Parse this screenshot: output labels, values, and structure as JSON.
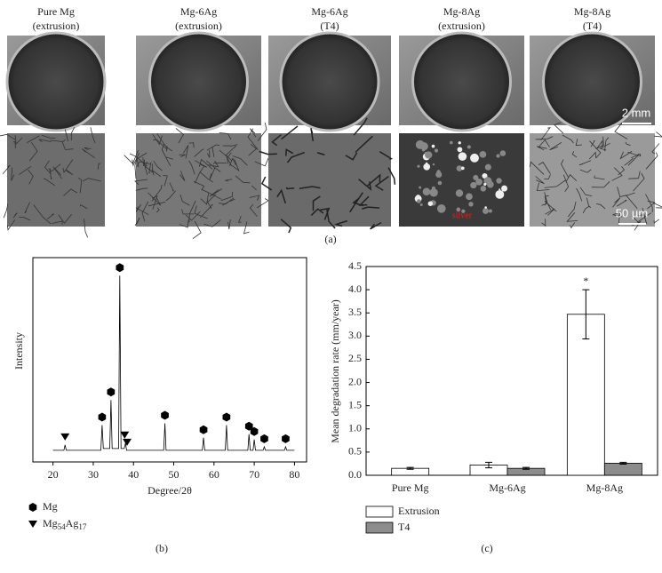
{
  "panel_a": {
    "columns": [
      {
        "line1": "Pure Mg",
        "line2": "(extrusion)"
      },
      {
        "line1": "Mg-6Ag",
        "line2": "(extrusion)"
      },
      {
        "line1": "Mg-6Ag",
        "line2": "(T4)"
      },
      {
        "line1": "Mg-8Ag",
        "line2": "(extrusion)"
      },
      {
        "line1": "Mg-8Ag",
        "line2": "(T4)"
      }
    ],
    "scale_bar_top": "2 mm",
    "scale_bar_bottom": "50 µm",
    "annotation": "silver",
    "label": "(a)"
  },
  "chart_data": [
    {
      "type": "line",
      "xlabel": "Degree/2θ",
      "ylabel": "Intensity",
      "x": [
        20,
        22.7,
        23,
        23.3,
        31.9,
        32.2,
        32.5,
        34.1,
        34.4,
        34.7,
        36.3,
        36.6,
        36.9,
        37.7,
        38.0,
        38.3,
        47.5,
        47.8,
        48.1,
        57.1,
        57.4,
        57.7,
        62.8,
        63.1,
        63.4,
        68.4,
        68.7,
        69.0,
        69.7,
        70.0,
        70.3,
        72.2,
        72.5,
        72.8,
        77.5,
        77.8,
        78.1,
        80
      ],
      "values": [
        3,
        3,
        6,
        3,
        3,
        17,
        4,
        4,
        31,
        4,
        4,
        100,
        4,
        4,
        7,
        3,
        3,
        18,
        3,
        3,
        10,
        3,
        3,
        17,
        3,
        3,
        12,
        3,
        3,
        9,
        3,
        3,
        5,
        3,
        3,
        5,
        3,
        3
      ],
      "color": "#000000",
      "xlim": [
        15,
        83
      ],
      "ylim": [
        0,
        110
      ],
      "xticks": [
        20,
        30,
        40,
        50,
        60,
        70,
        80
      ],
      "phase_markers": [
        {
          "name_parts": [
            "Mg"
          ],
          "shape": "hexagon",
          "x": [
            32.2,
            34.4,
            36.6,
            47.8,
            57.4,
            63.1,
            68.7,
            70.0,
            72.5,
            77.8
          ]
        },
        {
          "name_parts": [
            "Mg",
            "54",
            "Ag",
            "17"
          ],
          "shape": "triangle",
          "x": [
            23,
            37.8,
            38.4
          ]
        }
      ],
      "label": "(b)"
    },
    {
      "type": "bar",
      "ylabel": "Mean degradation rate (mm/year)",
      "categories": [
        "Pure Mg",
        "Mg-6Ag",
        "Mg-8Ag"
      ],
      "series": [
        {
          "name": "Extrusion",
          "color": "#ffffff",
          "values": [
            0.15,
            0.22,
            3.47
          ],
          "errors": [
            0.02,
            0.06,
            0.53
          ]
        },
        {
          "name": "T4",
          "color": "#8c8c8c",
          "values": [
            null,
            0.15,
            0.26
          ],
          "errors": [
            null,
            0.02,
            0.02
          ]
        }
      ],
      "ylim": [
        0,
        4.5
      ],
      "yticks": [
        {
          "value": 0,
          "label": "0.0"
        },
        {
          "value": 0.5,
          "label": "0.5"
        },
        {
          "value": 1,
          "label": "1.0"
        },
        {
          "value": 1.5,
          "label": "1.5"
        },
        {
          "value": 2,
          "label": "2.0"
        },
        {
          "value": 2.5,
          "label": "2.5"
        },
        {
          "value": 3,
          "label": "3.0"
        },
        {
          "value": 3.5,
          "label": "3.5"
        },
        {
          "value": 4,
          "label": "4.0"
        },
        {
          "value": 4.5,
          "label": "4.5"
        }
      ],
      "annotation": "*",
      "label": "(c)"
    }
  ]
}
